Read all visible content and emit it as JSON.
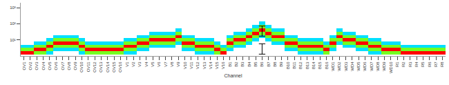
{
  "chart_data": {
    "type": "heatmap",
    "x_label": "Channel",
    "log": "y",
    "ylim": [
      1,
      2000
    ],
    "yticks": [
      {
        "value": 10,
        "label": "10¹"
      },
      {
        "value": 100,
        "label": "10²"
      },
      {
        "value": 1000,
        "label": "10³"
      }
    ],
    "categories": [
      "OV1",
      "OV2",
      "OV3",
      "OV4",
      "OV5",
      "OV6",
      "OV7",
      "OV8",
      "OV9",
      "OV10",
      "OV11",
      "OV12",
      "OV13",
      "OV14",
      "OV15",
      "OV16",
      "V1",
      "V2",
      "V3",
      "V4",
      "V5",
      "V6",
      "V7",
      "V8",
      "V9",
      "V10",
      "V11",
      "V12",
      "V13",
      "V14",
      "V15",
      "V16",
      "B1",
      "B2",
      "B3",
      "B4",
      "B5",
      "B6",
      "B7",
      "B8",
      "B9",
      "B10",
      "B11",
      "B12",
      "B13",
      "B14",
      "B15",
      "B16",
      "WD1",
      "WD2",
      "WD3",
      "WD4",
      "WD5",
      "WD6",
      "WD7",
      "WD8",
      "WD9",
      "WD10",
      "R1",
      "R2",
      "R3",
      "R4",
      "R5",
      "R6",
      "R7",
      "R8"
    ],
    "y_bins": [
      1.2,
      2,
      3.2,
      5,
      8,
      13,
      20,
      33,
      53,
      85,
      140
    ],
    "cells": [
      [
        100,
        50,
        15,
        null,
        null,
        null,
        null,
        null,
        null,
        null
      ],
      [
        100,
        50,
        15,
        null,
        null,
        null,
        null,
        null,
        null,
        null
      ],
      [
        50,
        100,
        50,
        15,
        null,
        null,
        null,
        null,
        null,
        null
      ],
      [
        50,
        100,
        50,
        15,
        null,
        null,
        null,
        null,
        null,
        null
      ],
      [
        15,
        50,
        100,
        50,
        15,
        null,
        null,
        null,
        null,
        null
      ],
      [
        null,
        15,
        50,
        100,
        50,
        15,
        null,
        null,
        null,
        null
      ],
      [
        null,
        15,
        50,
        100,
        50,
        15,
        null,
        null,
        null,
        null
      ],
      [
        null,
        15,
        50,
        100,
        50,
        15,
        null,
        null,
        null,
        null
      ],
      [
        null,
        15,
        50,
        100,
        50,
        15,
        null,
        null,
        null,
        null
      ],
      [
        15,
        50,
        100,
        50,
        15,
        null,
        null,
        null,
        null,
        null
      ],
      [
        50,
        100,
        50,
        15,
        null,
        null,
        null,
        null,
        null,
        null
      ],
      [
        50,
        100,
        50,
        15,
        null,
        null,
        null,
        null,
        null,
        null
      ],
      [
        50,
        100,
        50,
        15,
        null,
        null,
        null,
        null,
        null,
        null
      ],
      [
        50,
        100,
        50,
        15,
        null,
        null,
        null,
        null,
        null,
        null
      ],
      [
        50,
        100,
        50,
        15,
        null,
        null,
        null,
        null,
        null,
        null
      ],
      [
        50,
        100,
        50,
        15,
        null,
        null,
        null,
        null,
        null,
        null
      ],
      [
        15,
        50,
        100,
        50,
        15,
        null,
        null,
        null,
        null,
        null
      ],
      [
        15,
        50,
        100,
        50,
        15,
        null,
        null,
        null,
        null,
        null
      ],
      [
        null,
        15,
        50,
        100,
        50,
        15,
        null,
        null,
        null,
        null
      ],
      [
        null,
        15,
        50,
        100,
        50,
        15,
        null,
        null,
        null,
        null
      ],
      [
        null,
        null,
        15,
        50,
        100,
        50,
        15,
        null,
        null,
        null
      ],
      [
        null,
        null,
        15,
        50,
        100,
        50,
        15,
        null,
        null,
        null
      ],
      [
        null,
        null,
        15,
        50,
        100,
        50,
        15,
        null,
        null,
        null
      ],
      [
        null,
        null,
        15,
        50,
        100,
        50,
        15,
        null,
        null,
        null
      ],
      [
        null,
        null,
        null,
        15,
        50,
        100,
        50,
        15,
        null,
        null
      ],
      [
        null,
        15,
        50,
        100,
        50,
        15,
        null,
        null,
        null,
        null
      ],
      [
        null,
        15,
        50,
        100,
        50,
        15,
        null,
        null,
        null,
        null
      ],
      [
        15,
        50,
        100,
        50,
        15,
        null,
        null,
        null,
        null,
        null
      ],
      [
        15,
        50,
        100,
        50,
        15,
        null,
        null,
        null,
        null,
        null
      ],
      [
        15,
        50,
        100,
        50,
        15,
        null,
        null,
        null,
        null,
        null
      ],
      [
        50,
        100,
        50,
        15,
        null,
        null,
        null,
        null,
        null,
        null
      ],
      [
        100,
        50,
        15,
        null,
        null,
        null,
        null,
        null,
        null,
        null
      ],
      [
        null,
        15,
        50,
        100,
        50,
        15,
        null,
        null,
        null,
        null
      ],
      [
        null,
        null,
        15,
        50,
        100,
        50,
        15,
        null,
        null,
        null
      ],
      [
        null,
        null,
        15,
        50,
        100,
        50,
        15,
        null,
        null,
        null
      ],
      [
        null,
        null,
        null,
        15,
        50,
        100,
        50,
        15,
        null,
        null
      ],
      [
        null,
        null,
        null,
        null,
        15,
        50,
        100,
        50,
        15,
        null
      ],
      [
        null,
        null,
        null,
        null,
        null,
        15,
        50,
        100,
        50,
        15
      ],
      [
        null,
        null,
        null,
        null,
        15,
        50,
        100,
        50,
        15,
        null
      ],
      [
        null,
        null,
        null,
        15,
        50,
        100,
        50,
        15,
        null,
        null
      ],
      [
        null,
        null,
        null,
        15,
        50,
        100,
        50,
        15,
        null,
        null
      ],
      [
        null,
        15,
        50,
        100,
        50,
        15,
        null,
        null,
        null,
        null
      ],
      [
        null,
        15,
        50,
        100,
        50,
        15,
        null,
        null,
        null,
        null
      ],
      [
        15,
        50,
        100,
        50,
        15,
        null,
        null,
        null,
        null,
        null
      ],
      [
        15,
        50,
        100,
        50,
        15,
        null,
        null,
        null,
        null,
        null
      ],
      [
        15,
        50,
        100,
        50,
        15,
        null,
        null,
        null,
        null,
        null
      ],
      [
        15,
        50,
        100,
        50,
        15,
        null,
        null,
        null,
        null,
        null
      ],
      [
        50,
        100,
        50,
        15,
        null,
        null,
        null,
        null,
        null,
        null
      ],
      [
        null,
        15,
        50,
        100,
        50,
        15,
        null,
        null,
        null,
        null
      ],
      [
        null,
        null,
        null,
        15,
        50,
        100,
        50,
        15,
        null,
        null
      ],
      [
        null,
        null,
        15,
        50,
        100,
        50,
        15,
        null,
        null,
        null
      ],
      [
        null,
        null,
        15,
        50,
        100,
        50,
        15,
        null,
        null,
        null
      ],
      [
        null,
        15,
        50,
        100,
        50,
        15,
        null,
        null,
        null,
        null
      ],
      [
        null,
        15,
        50,
        100,
        50,
        15,
        null,
        null,
        null,
        null
      ],
      [
        15,
        50,
        100,
        50,
        15,
        null,
        null,
        null,
        null,
        null
      ],
      [
        15,
        50,
        100,
        50,
        15,
        null,
        null,
        null,
        null,
        null
      ],
      [
        50,
        100,
        50,
        15,
        null,
        null,
        null,
        null,
        null,
        null
      ],
      [
        50,
        100,
        50,
        15,
        null,
        null,
        null,
        null,
        null,
        null
      ],
      [
        50,
        100,
        50,
        15,
        null,
        null,
        null,
        null,
        null,
        null
      ],
      [
        100,
        50,
        15,
        null,
        null,
        null,
        null,
        null,
        null,
        null
      ],
      [
        100,
        50,
        15,
        null,
        null,
        null,
        null,
        null,
        null,
        null
      ],
      [
        100,
        50,
        15,
        null,
        null,
        null,
        null,
        null,
        null,
        null
      ],
      [
        100,
        50,
        15,
        null,
        null,
        null,
        null,
        null,
        null,
        null
      ],
      [
        100,
        50,
        15,
        null,
        null,
        null,
        null,
        null,
        null,
        null
      ],
      [
        100,
        50,
        15,
        null,
        null,
        null,
        null,
        null,
        null,
        null
      ],
      [
        100,
        50,
        15,
        null,
        null,
        null,
        null,
        null,
        null,
        null
      ]
    ],
    "error_bars": [
      {
        "category": "B6",
        "low": 17,
        "high": 72
      },
      {
        "category": "B6",
        "low": 1.3,
        "high": 5.7
      }
    ]
  }
}
